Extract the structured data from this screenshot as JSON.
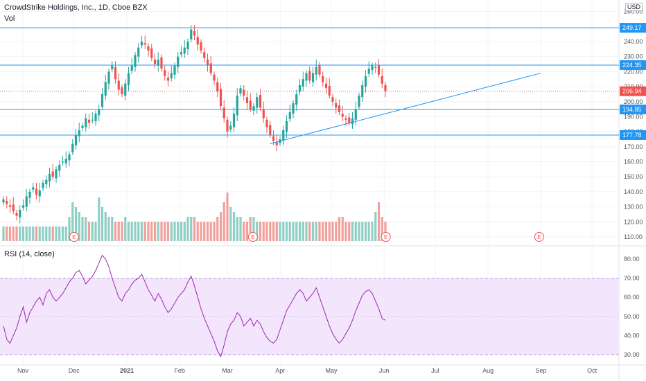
{
  "header": {
    "title": "CrowdStrike Holdings, Inc., 1D, Cboe BZX",
    "vol_label": "Vol",
    "rsi_label": "RSI (14, close)",
    "currency": "USD"
  },
  "colors": {
    "up": "#26a69a",
    "down": "#ef5350",
    "vol_up": "#8fcfc5",
    "vol_down": "#f2a09c",
    "level_line": "#2196f3",
    "trend_line": "#2196f3",
    "rsi_line": "#9c27b0",
    "rsi_band": "#f3e5fb",
    "earnings": "#ef5350"
  },
  "chart_data": [
    {
      "type": "candlestick",
      "title": "CrowdStrike Holdings, Inc., 1D, Cboe BZX",
      "y_axis_ticks": [
        110,
        120,
        130,
        140,
        150,
        160,
        170,
        180,
        190,
        200,
        210,
        220,
        230,
        240,
        260
      ],
      "ylim": [
        105,
        262
      ],
      "x_axis_labels": [
        "Nov",
        "Dec",
        "2021",
        "Feb",
        "Mar",
        "Apr",
        "May",
        "Jun",
        "Jul",
        "Aug",
        "Sep",
        "Oct"
      ],
      "horizontal_levels": [
        249.17,
        224.35,
        194.85,
        177.78
      ],
      "last_price": 206.94,
      "trend_line": {
        "from": [
          "Mar 26",
          172
        ],
        "to": [
          "Sep 1",
          219
        ]
      },
      "earnings_markers": [
        "Dec 1",
        "Mar 16",
        "Jun 2",
        "Aug 31"
      ],
      "closes": [
        135,
        132,
        130,
        127,
        124,
        128,
        131,
        137,
        140,
        143,
        138,
        141,
        146,
        148,
        152,
        150,
        155,
        158,
        160,
        162,
        165,
        172,
        178,
        181,
        184,
        189,
        186,
        188,
        192,
        195,
        205,
        213,
        220,
        224,
        215,
        208,
        205,
        212,
        219,
        224,
        231,
        236,
        240,
        238,
        234,
        229,
        225,
        228,
        222,
        217,
        214,
        219,
        224,
        230,
        233,
        236,
        240,
        248,
        244,
        238,
        234,
        229,
        224,
        219,
        214,
        207,
        197,
        189,
        180,
        184,
        192,
        204,
        209,
        204,
        199,
        195,
        197,
        203,
        196,
        189,
        183,
        178,
        174,
        171,
        175,
        181,
        187,
        193,
        199,
        205,
        211,
        215,
        219,
        214,
        219,
        223,
        218,
        213,
        209,
        204,
        200,
        196,
        193,
        190,
        188,
        186,
        189,
        195,
        204,
        211,
        217,
        222,
        224,
        223,
        218,
        212,
        206.94
      ],
      "volume_scale": [
        3,
        3,
        3,
        3,
        3,
        3,
        3,
        3,
        3,
        3,
        3,
        3,
        3,
        3,
        3,
        3,
        3,
        3,
        3,
        3,
        5,
        8,
        7,
        6,
        5,
        5,
        4,
        4,
        4,
        9,
        7,
        6,
        5,
        5,
        4,
        4,
        4,
        5,
        4,
        4,
        4,
        4,
        4,
        4,
        4,
        4,
        4,
        4,
        4,
        4,
        4,
        4,
        4,
        4,
        4,
        4,
        5,
        5,
        5,
        4,
        4,
        4,
        4,
        4,
        4,
        5,
        6,
        8,
        10,
        7,
        6,
        5,
        5,
        4,
        4,
        5,
        5,
        4,
        4,
        4,
        4,
        4,
        4,
        4,
        4,
        4,
        4,
        4,
        4,
        4,
        4,
        4,
        4,
        4,
        4,
        4,
        4,
        4,
        4,
        4,
        4,
        4,
        5,
        5,
        4,
        4,
        4,
        4,
        4,
        4,
        4,
        4,
        4,
        6,
        8,
        5,
        4
      ],
      "rsi": {
        "y_axis_ticks": [
          30,
          40,
          50,
          60,
          70,
          80
        ],
        "ylim": [
          27,
          84
        ],
        "band": [
          30,
          70
        ],
        "values": [
          45,
          38,
          36,
          40,
          44,
          50,
          55,
          47,
          52,
          55,
          58,
          60,
          56,
          62,
          64,
          60,
          58,
          60,
          62,
          65,
          68,
          70,
          73,
          74,
          71,
          67,
          69,
          71,
          74,
          78,
          82,
          80,
          76,
          70,
          65,
          60,
          58,
          62,
          64,
          67,
          69,
          70,
          72,
          68,
          64,
          61,
          58,
          62,
          59,
          55,
          52,
          54,
          57,
          60,
          62,
          64,
          68,
          71,
          66,
          60,
          54,
          49,
          45,
          41,
          37,
          32,
          29,
          35,
          42,
          46,
          48,
          52,
          50,
          45,
          47,
          49,
          45,
          48,
          46,
          42,
          39,
          37,
          36,
          38,
          43,
          48,
          53,
          56,
          59,
          62,
          64,
          62,
          58,
          60,
          62,
          65,
          60,
          55,
          50,
          45,
          41,
          38,
          36,
          38,
          41,
          44,
          48,
          53,
          57,
          61,
          63,
          64,
          62,
          58,
          54,
          49,
          48
        ]
      }
    }
  ]
}
